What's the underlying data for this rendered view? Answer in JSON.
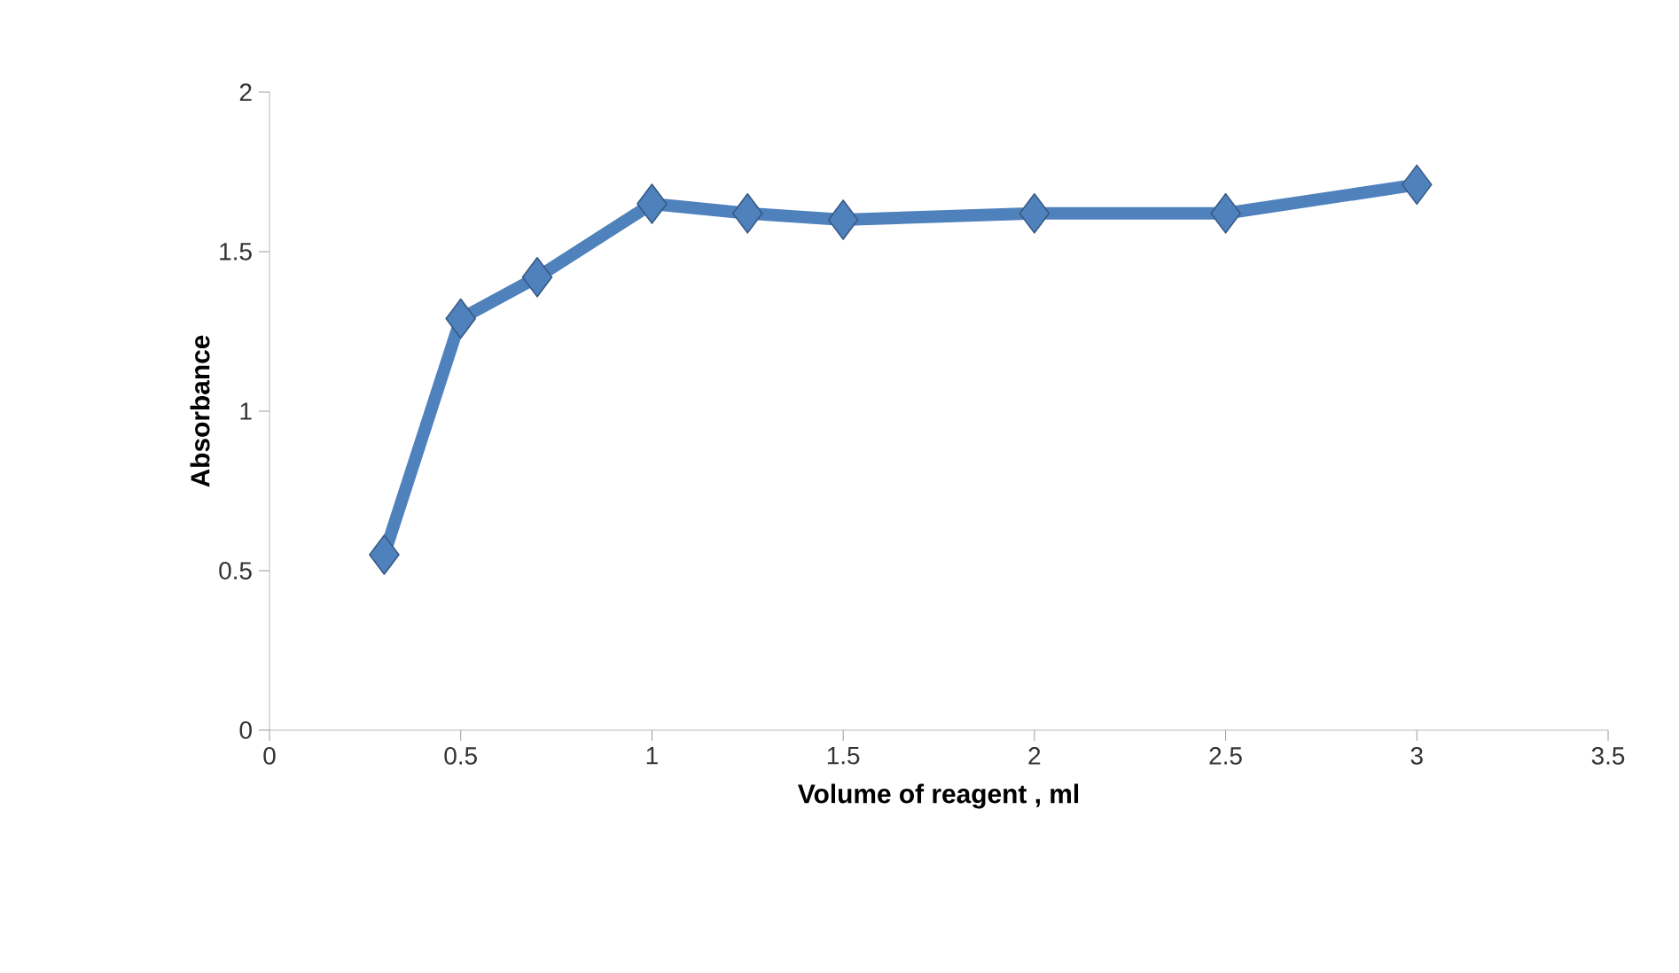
{
  "chart_data": {
    "type": "line",
    "xlabel": "Volume of reagent , ml",
    "ylabel": "Absorbance",
    "x": [
      0.3,
      0.5,
      0.7,
      1.0,
      1.25,
      1.5,
      2.0,
      2.5,
      3.0
    ],
    "series": [
      {
        "color": "#4f81bd",
        "values": [
          0.55,
          1.29,
          1.42,
          1.65,
          1.62,
          1.6,
          1.62,
          1.62,
          1.71
        ]
      }
    ],
    "xlim": [
      0,
      3.5
    ],
    "xticks": [
      0,
      0.5,
      1,
      1.5,
      2,
      2.5,
      3,
      3.5
    ],
    "ylim": [
      0,
      2
    ],
    "yticks": [
      0,
      0.5,
      1,
      1.5,
      2
    ],
    "grid": false,
    "marker": "diamond",
    "line_style": "solid"
  }
}
